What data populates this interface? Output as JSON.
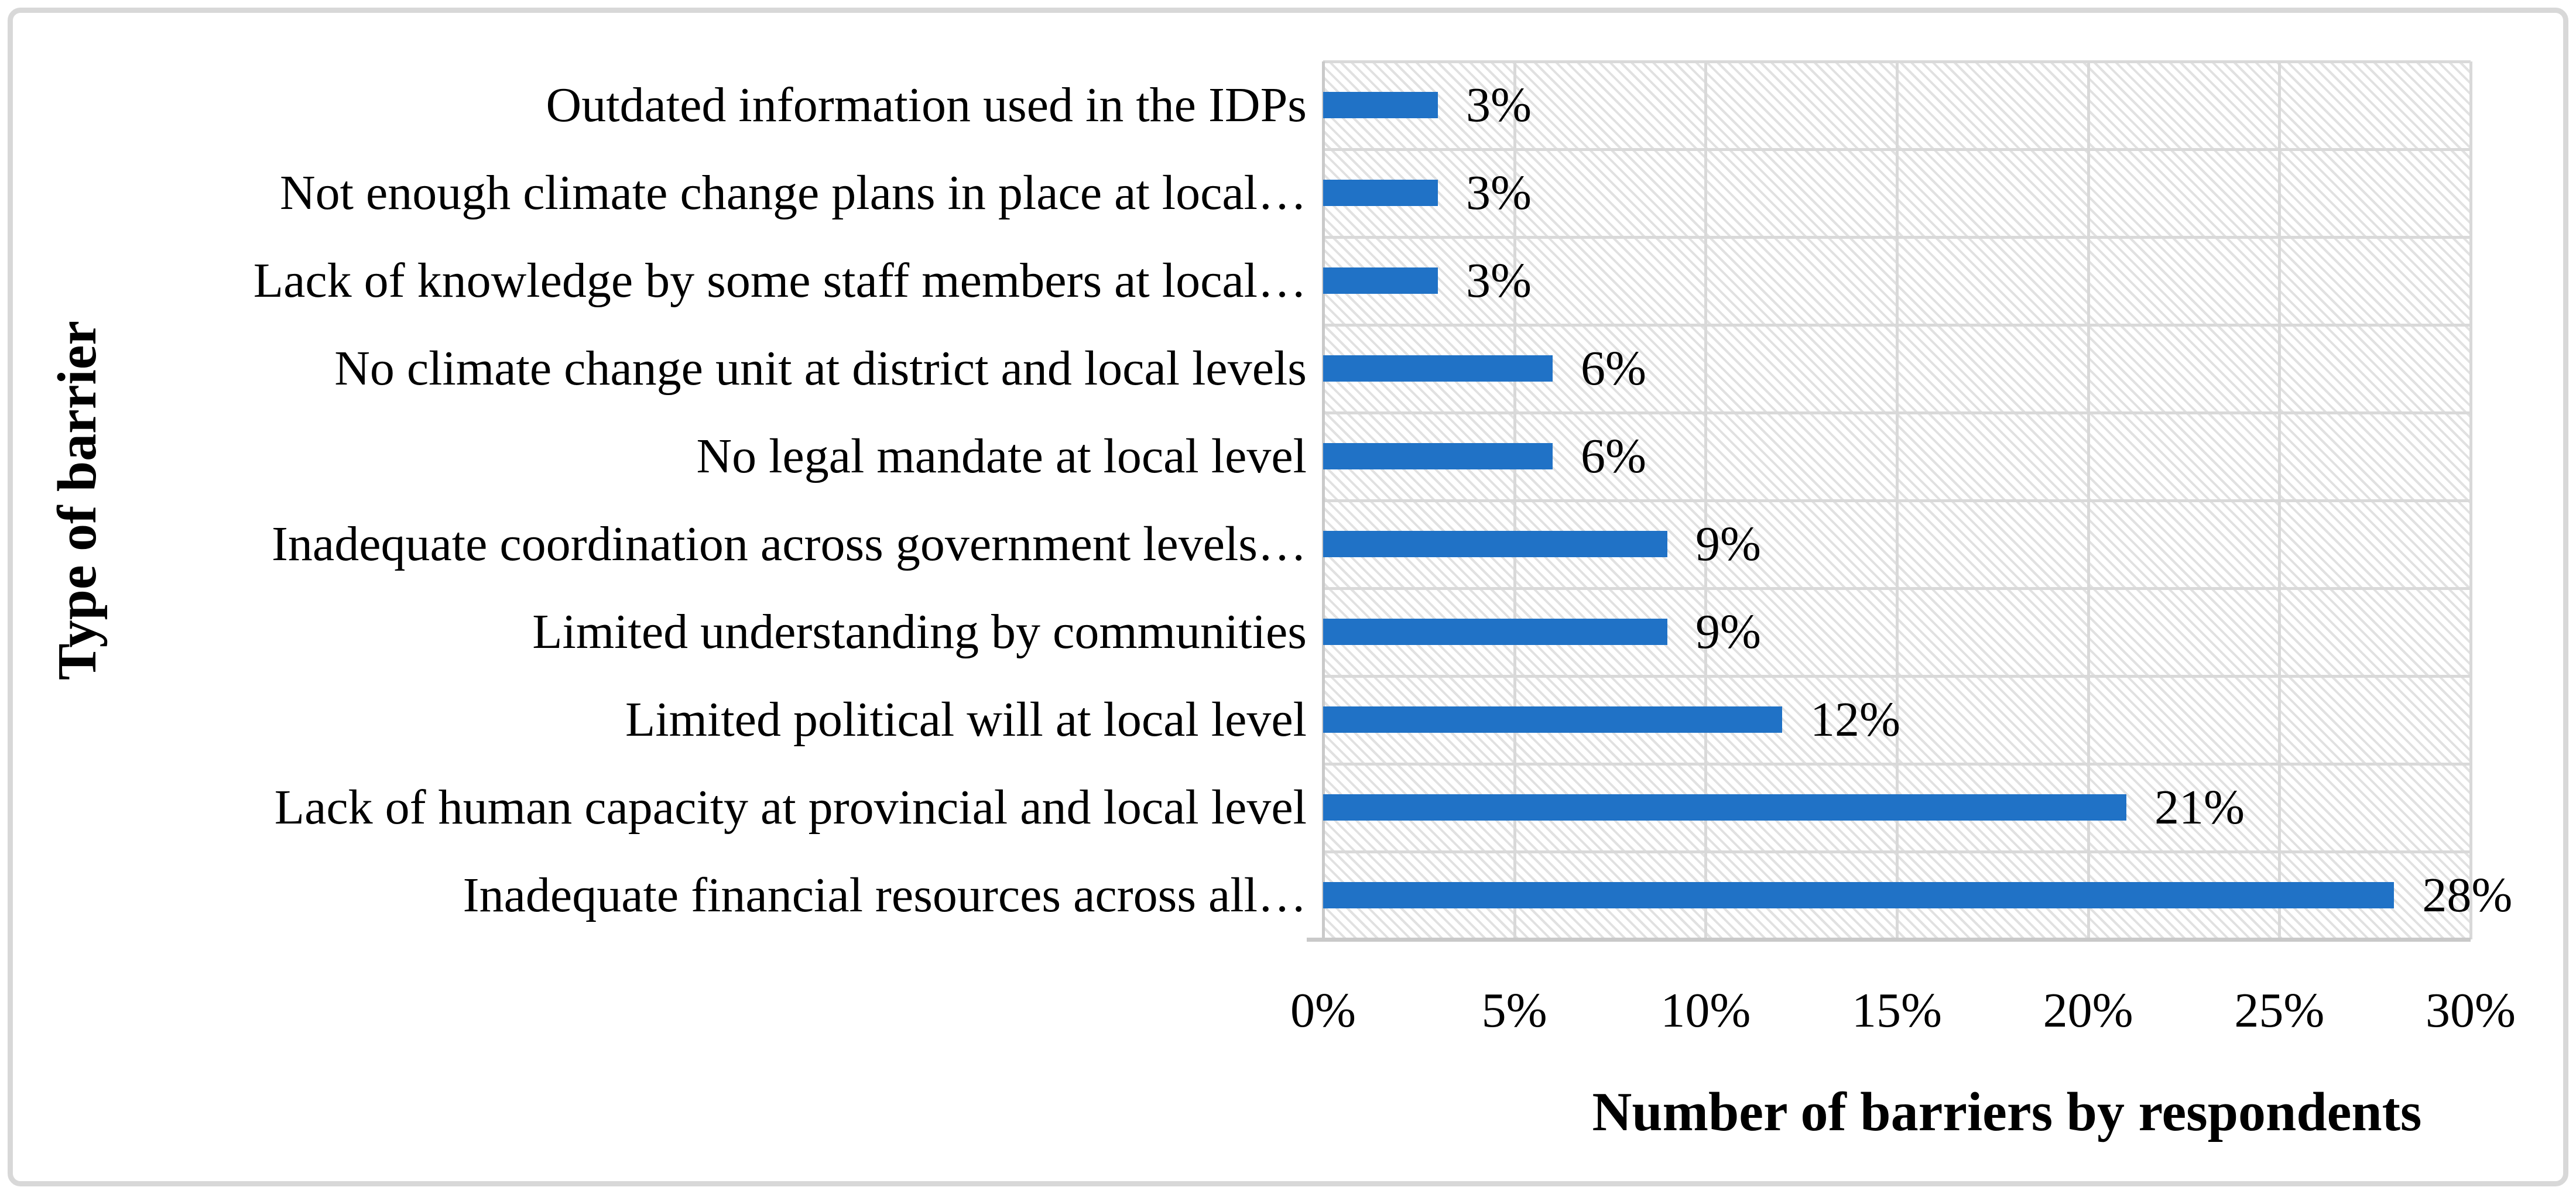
{
  "figure": {
    "background_color": "#ffffff",
    "frame_border_color": "#d8d8d8"
  },
  "chart_data": {
    "type": "bar",
    "orientation": "horizontal",
    "title": "",
    "xlabel": "Number of barriers by respondents",
    "ylabel": "Type of barrier",
    "categories": [
      "Outdated information used in the IDPs",
      "Not enough climate change plans in place at local…",
      "Lack of knowledge by some staff members at local…",
      "No climate change unit at district and local levels",
      "No legal mandate at local level",
      "Inadequate coordination across government levels…",
      "Limited understanding by communities",
      "Limited political will at local level",
      "Lack of human capacity at provincial and local level",
      "Inadequate financial resources across all…"
    ],
    "values": [
      3,
      3,
      3,
      6,
      6,
      9,
      9,
      12,
      21,
      28
    ],
    "value_labels": [
      "3%",
      "3%",
      "3%",
      "6%",
      "6%",
      "9%",
      "9%",
      "12%",
      "21%",
      "28%"
    ],
    "x_ticks": [
      "0%",
      "5%",
      "10%",
      "15%",
      "20%",
      "25%",
      "30%"
    ],
    "x_tick_values": [
      0,
      5,
      10,
      15,
      20,
      25,
      30
    ],
    "xlim": [
      0,
      30
    ],
    "bar_color": "#2072c6",
    "gridline_color": "#d9d9d9",
    "axis_line_color": "#c9c9c9",
    "plot_fill_pattern": "light-downward-diagonal-hatch",
    "grid": true,
    "legend_position": "none"
  }
}
